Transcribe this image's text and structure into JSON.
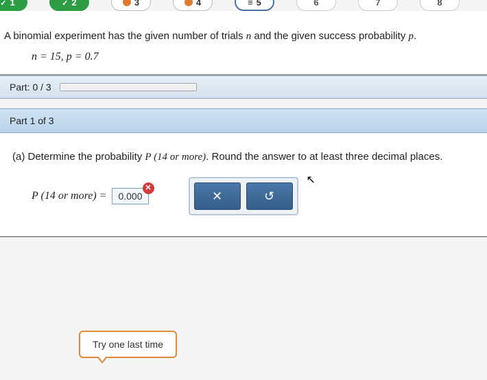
{
  "nav": {
    "items": [
      {
        "num": "1",
        "state": "green"
      },
      {
        "num": "2",
        "state": "green"
      },
      {
        "num": "3",
        "state": "orange"
      },
      {
        "num": "4",
        "state": "orange"
      },
      {
        "num": "5",
        "state": "current"
      },
      {
        "num": "6",
        "state": "plain"
      },
      {
        "num": "7",
        "state": "plain"
      },
      {
        "num": "8",
        "state": "plain"
      }
    ]
  },
  "problem": {
    "statement": "A binomial experiment has the given number of trials n and the given success probability p.",
    "params_text": "n = 15, p = 0.7"
  },
  "progress": {
    "label": "Part: 0 / 3",
    "percent": 0
  },
  "part": {
    "header": "Part 1 of 3",
    "question_prefix": "(a)  Determine the probability ",
    "question_expr": "P (14 or more)",
    "question_suffix": ". Round the answer to at least three decimal places.",
    "expr_label": "P (14 or more) =",
    "answer_value": "0.000",
    "wrong_badge": "✕",
    "buttons": {
      "cancel": "✕",
      "reset": "↺"
    }
  },
  "hint": {
    "text": "Try one last time"
  },
  "colors": {
    "green": "#2d9d44",
    "orange": "#e07b2e",
    "blue_border": "#4a6fa5",
    "header_grad_top": "#d0e3f3",
    "header_grad_bot": "#b9d3ea",
    "btn_grad_top": "#4a78a8",
    "btn_grad_bot": "#355e8a",
    "error_red": "#d23b3b",
    "hint_border": "#e08a3a"
  }
}
